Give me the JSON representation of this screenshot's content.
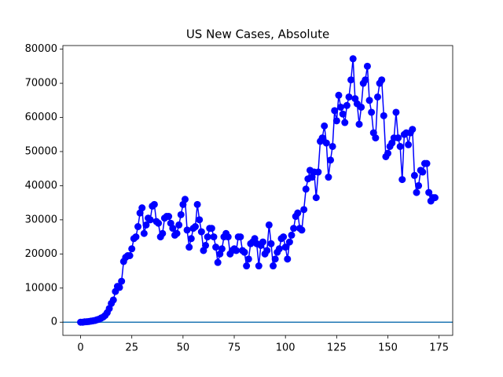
{
  "chart_data": {
    "type": "line",
    "title": "US New Cases, Absolute",
    "x": [
      0,
      1,
      2,
      3,
      4,
      5,
      6,
      7,
      8,
      9,
      10,
      11,
      12,
      13,
      14,
      15,
      16,
      17,
      18,
      19,
      20,
      21,
      22,
      23,
      24,
      25,
      26,
      27,
      28,
      29,
      30,
      31,
      32,
      33,
      34,
      35,
      36,
      37,
      38,
      39,
      40,
      41,
      42,
      43,
      44,
      45,
      46,
      47,
      48,
      49,
      50,
      51,
      52,
      53,
      54,
      55,
      56,
      57,
      58,
      59,
      60,
      61,
      62,
      63,
      64,
      65,
      66,
      67,
      68,
      69,
      70,
      71,
      72,
      73,
      74,
      75,
      76,
      77,
      78,
      79,
      80,
      81,
      82,
      83,
      84,
      85,
      86,
      87,
      88,
      89,
      90,
      91,
      92,
      93,
      94,
      95,
      96,
      97,
      98,
      99,
      100,
      101,
      102,
      103,
      104,
      105,
      106,
      107,
      108,
      109,
      110,
      111,
      112,
      113,
      114,
      115,
      116,
      117,
      118,
      119,
      120,
      121,
      122,
      123,
      124,
      125,
      126,
      127,
      128,
      129,
      130,
      131,
      132,
      133,
      134,
      135,
      136,
      137,
      138,
      139,
      140,
      141,
      142,
      143,
      144,
      145,
      146,
      147,
      148,
      149,
      150,
      151,
      152,
      153,
      154,
      155,
      156,
      157,
      158,
      159,
      160,
      161,
      162,
      163,
      164,
      165,
      166,
      167,
      168,
      169,
      170,
      171,
      172,
      173
    ],
    "series": [
      {
        "color": "#0000ff",
        "marker": "circle",
        "values": [
          0,
          0,
          100,
          150,
          200,
          300,
          400,
          500,
          700,
          900,
          1200,
          1500,
          2000,
          2800,
          4000,
          5500,
          6500,
          9000,
          10500,
          10200,
          12000,
          17800,
          19000,
          19500,
          19500,
          21500,
          24500,
          25000,
          28000,
          32000,
          33500,
          26000,
          28500,
          30500,
          30000,
          34000,
          34500,
          29500,
          29000,
          25000,
          26000,
          30500,
          31000,
          31000,
          29000,
          27500,
          25500,
          26000,
          28500,
          31500,
          34500,
          36000,
          27000,
          22000,
          24500,
          27500,
          28000,
          34500,
          30000,
          26500,
          21000,
          22500,
          25000,
          27500,
          27500,
          25000,
          22000,
          17500,
          20000,
          21500,
          25000,
          26000,
          25000,
          20000,
          21000,
          21500,
          21000,
          25000,
          25000,
          21000,
          20500,
          16500,
          18500,
          23000,
          23500,
          24500,
          23000,
          16500,
          22500,
          23500,
          20000,
          21000,
          28500,
          23000,
          16500,
          18500,
          20500,
          21500,
          24500,
          25000,
          22000,
          18500,
          23500,
          25500,
          27500,
          31000,
          32000,
          27500,
          27000,
          33000,
          39000,
          42000,
          44500,
          42500,
          44000,
          36500,
          44000,
          53000,
          54000,
          57500,
          52500,
          42500,
          47500,
          51500,
          62000,
          59000,
          66500,
          63000,
          61000,
          58500,
          63500,
          66000,
          71000,
          77200,
          65500,
          64000,
          58000,
          63000,
          70000,
          71000,
          75000,
          65000,
          61500,
          55500,
          54000,
          66000,
          70000,
          71000,
          60500,
          48500,
          49500,
          51500,
          52500,
          54000,
          61500,
          54000,
          51500,
          41800,
          55000,
          55500,
          52000,
          55500,
          56500,
          43000,
          38000,
          40000,
          44500,
          44000,
          46500,
          46500,
          38000,
          35500,
          36500,
          36500
        ]
      }
    ],
    "hline": {
      "value": 0,
      "color": "#1f77b4"
    },
    "xlim": [
      -8.65,
      181.65
    ],
    "xticks": [
      0,
      25,
      50,
      75,
      100,
      125,
      150,
      175
    ],
    "ylim": [
      -3860,
      81060
    ],
    "yticks": [
      0,
      10000,
      20000,
      30000,
      40000,
      50000,
      60000,
      70000,
      80000
    ]
  }
}
